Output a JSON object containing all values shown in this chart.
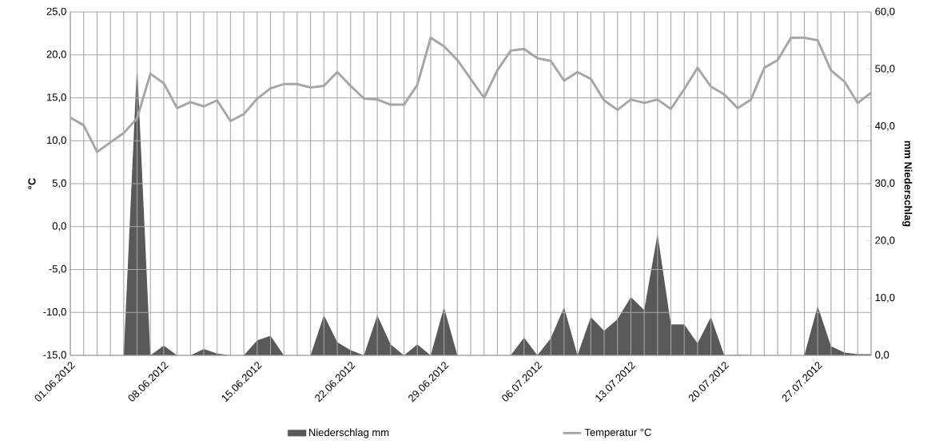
{
  "chart_data": {
    "type": "line",
    "categories": [
      "01.06.2012",
      null,
      null,
      null,
      null,
      null,
      null,
      "08.06.2012",
      null,
      null,
      null,
      null,
      null,
      null,
      "15.06.2012",
      null,
      null,
      null,
      null,
      null,
      null,
      "22.06.2012",
      null,
      null,
      null,
      null,
      null,
      null,
      "29.06.2012",
      null,
      null,
      null,
      null,
      null,
      null,
      "06.07.2012",
      null,
      null,
      null,
      null,
      null,
      null,
      "13.07.2012",
      null,
      null,
      null,
      null,
      null,
      null,
      "20.07.2012",
      null,
      null,
      null,
      null,
      null,
      null,
      "27.07.2012",
      null,
      null,
      null,
      null
    ],
    "ylabel": "°C",
    "y2label": "mm Niederschlag",
    "series": [
      {
        "name": "Niederschlag mm",
        "type": "area",
        "axis": "y2",
        "color": "#595959",
        "values": [
          0,
          0,
          0,
          0,
          0,
          51,
          0,
          1.7,
          0,
          0,
          1.1,
          0.3,
          0,
          0,
          2.6,
          3.4,
          0,
          0,
          0,
          7.0,
          2.3,
          0.9,
          0,
          7.0,
          1.9,
          0,
          1.9,
          0,
          8.4,
          0,
          0,
          0,
          0,
          0,
          3.1,
          0,
          3.0,
          8.4,
          0,
          6.7,
          4.3,
          6.3,
          10.2,
          7.9,
          21.2,
          5.4,
          5.4,
          2.1,
          6.7,
          0,
          0.1,
          0,
          0,
          0,
          0,
          0,
          8.6,
          1.6,
          0.5,
          0.2,
          0.2
        ]
      },
      {
        "name": "Temperatur °C",
        "axis": "y",
        "color": "#a6a6a6",
        "values": [
          12.7,
          11.8,
          8.7,
          9.8,
          10.9,
          12.6,
          17.8,
          16.7,
          13.8,
          14.5,
          14.0,
          14.7,
          12.3,
          13.1,
          14.9,
          16.1,
          16.6,
          16.6,
          16.2,
          16.4,
          18.0,
          16.4,
          14.9,
          14.8,
          14.2,
          14.2,
          16.5,
          22.0,
          21.0,
          19.4,
          17.2,
          15.0,
          18.2,
          20.5,
          20.7,
          19.6,
          19.3,
          17.0,
          18.0,
          17.2,
          14.7,
          13.6,
          14.8,
          14.4,
          14.8,
          13.7,
          16.0,
          18.5,
          16.3,
          15.4,
          13.8,
          14.8,
          18.5,
          19.4,
          22.0,
          22.0,
          21.7,
          18.2,
          16.9,
          14.4,
          15.6
        ]
      }
    ],
    "ylim": [
      -15,
      25
    ],
    "yticks": [
      {
        "value": -15,
        "label": "-15,0"
      },
      {
        "value": -10,
        "label": "-10,0"
      },
      {
        "value": -5,
        "label": "-5,0"
      },
      {
        "value": 0,
        "label": "0,0"
      },
      {
        "value": 5,
        "label": "5,0"
      },
      {
        "value": 10,
        "label": "10,0"
      },
      {
        "value": 15,
        "label": "15,0"
      },
      {
        "value": 20,
        "label": "20,0"
      },
      {
        "value": 25,
        "label": "25,0"
      }
    ],
    "y2lim": [
      0,
      60
    ],
    "y2ticks": [
      {
        "value": 0,
        "label": "0,0"
      },
      {
        "value": 10,
        "label": "10,0"
      },
      {
        "value": 20,
        "label": "20,0"
      },
      {
        "value": 30,
        "label": "30,0"
      },
      {
        "value": 40,
        "label": "40,0"
      },
      {
        "value": 50,
        "label": "50,0"
      },
      {
        "value": 60,
        "label": "60,0"
      }
    ],
    "grid": true,
    "legend": "bottom"
  }
}
